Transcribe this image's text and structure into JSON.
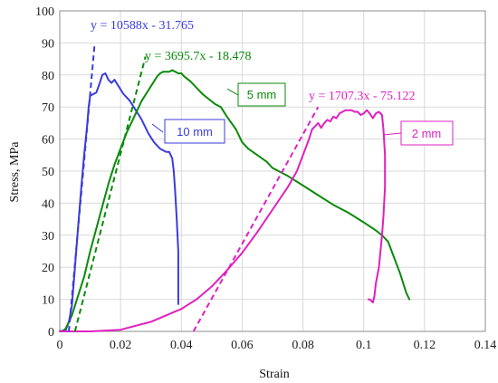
{
  "chart_data": {
    "type": "line",
    "xlabel": "Strain",
    "ylabel": "Stress, MPa",
    "xlim": [
      0,
      0.14
    ],
    "ylim": [
      0,
      100
    ],
    "x_ticks": [
      "0",
      "0.02",
      "0.04",
      "0.06",
      "0.08",
      "0.1",
      "0.12",
      "0.14"
    ],
    "y_ticks": [
      "0",
      "10",
      "20",
      "30",
      "40",
      "50",
      "60",
      "70",
      "80",
      "90",
      "100"
    ],
    "grid": true,
    "series": [
      {
        "name": "10 mm",
        "color": "#3b3bdd",
        "points": [
          [
            0.0,
            0
          ],
          [
            0.002,
            0.5
          ],
          [
            0.003,
            3
          ],
          [
            0.004,
            8
          ],
          [
            0.005,
            20
          ],
          [
            0.006,
            32
          ],
          [
            0.007,
            44
          ],
          [
            0.008,
            55
          ],
          [
            0.009,
            64
          ],
          [
            0.0095,
            70
          ],
          [
            0.01,
            73.5
          ],
          [
            0.011,
            74
          ],
          [
            0.012,
            74.5
          ],
          [
            0.013,
            77
          ],
          [
            0.014,
            80
          ],
          [
            0.015,
            80.5
          ],
          [
            0.016,
            78.5
          ],
          [
            0.017,
            77.5
          ],
          [
            0.018,
            78.5
          ],
          [
            0.019,
            77
          ],
          [
            0.02,
            75.5
          ],
          [
            0.021,
            74
          ],
          [
            0.022,
            73
          ],
          [
            0.023,
            72
          ],
          [
            0.024,
            70.5
          ],
          [
            0.025,
            69
          ],
          [
            0.026,
            67.5
          ],
          [
            0.027,
            66
          ],
          [
            0.028,
            64
          ],
          [
            0.029,
            62
          ],
          [
            0.03,
            60.5
          ],
          [
            0.031,
            59
          ],
          [
            0.032,
            58
          ],
          [
            0.033,
            57
          ],
          [
            0.034,
            56.5
          ],
          [
            0.035,
            56
          ],
          [
            0.036,
            56
          ],
          [
            0.037,
            54
          ],
          [
            0.0375,
            50
          ],
          [
            0.038,
            43
          ],
          [
            0.0385,
            35
          ],
          [
            0.039,
            25
          ],
          [
            0.039,
            15
          ],
          [
            0.039,
            8.5
          ]
        ]
      },
      {
        "name": "5 mm",
        "color": "#0a8a0a",
        "points": [
          [
            0.0,
            0
          ],
          [
            0.001,
            0
          ],
          [
            0.002,
            1
          ],
          [
            0.004,
            5
          ],
          [
            0.006,
            11
          ],
          [
            0.008,
            17
          ],
          [
            0.01,
            25
          ],
          [
            0.012,
            32
          ],
          [
            0.014,
            39
          ],
          [
            0.016,
            46
          ],
          [
            0.018,
            52
          ],
          [
            0.02,
            57
          ],
          [
            0.022,
            62
          ],
          [
            0.024,
            66
          ],
          [
            0.025,
            68
          ],
          [
            0.026,
            70
          ],
          [
            0.027,
            72
          ],
          [
            0.028,
            73.5
          ],
          [
            0.029,
            75
          ],
          [
            0.03,
            76.5
          ],
          [
            0.031,
            78
          ],
          [
            0.032,
            79.5
          ],
          [
            0.033,
            80.5
          ],
          [
            0.034,
            81
          ],
          [
            0.036,
            81
          ],
          [
            0.037,
            81.5
          ],
          [
            0.038,
            81
          ],
          [
            0.039,
            80.5
          ],
          [
            0.04,
            80.5
          ],
          [
            0.041,
            79.5
          ],
          [
            0.043,
            78
          ],
          [
            0.045,
            76
          ],
          [
            0.047,
            74
          ],
          [
            0.049,
            72.5
          ],
          [
            0.051,
            71
          ],
          [
            0.053,
            70
          ],
          [
            0.055,
            67
          ],
          [
            0.058,
            63
          ],
          [
            0.06,
            59
          ],
          [
            0.062,
            57
          ],
          [
            0.065,
            55
          ],
          [
            0.068,
            53
          ],
          [
            0.07,
            51
          ],
          [
            0.075,
            48.5
          ],
          [
            0.08,
            45.5
          ],
          [
            0.085,
            42.5
          ],
          [
            0.09,
            39.5
          ],
          [
            0.095,
            37
          ],
          [
            0.1,
            34
          ],
          [
            0.104,
            31.5
          ],
          [
            0.106,
            30
          ],
          [
            0.108,
            28
          ],
          [
            0.11,
            23
          ],
          [
            0.112,
            18
          ],
          [
            0.114,
            12
          ],
          [
            0.115,
            10
          ]
        ]
      },
      {
        "name": "2 mm",
        "color": "#e020c0",
        "points": [
          [
            0.0,
            0
          ],
          [
            0.01,
            0
          ],
          [
            0.02,
            0.5
          ],
          [
            0.03,
            3
          ],
          [
            0.04,
            7
          ],
          [
            0.045,
            10
          ],
          [
            0.05,
            14
          ],
          [
            0.055,
            19
          ],
          [
            0.06,
            24.5
          ],
          [
            0.065,
            31
          ],
          [
            0.07,
            38
          ],
          [
            0.075,
            45
          ],
          [
            0.078,
            50
          ],
          [
            0.08,
            55
          ],
          [
            0.082,
            60
          ],
          [
            0.083,
            63
          ],
          [
            0.085,
            65
          ],
          [
            0.086,
            63.5
          ],
          [
            0.087,
            65
          ],
          [
            0.088,
            66
          ],
          [
            0.089,
            65.5
          ],
          [
            0.09,
            67
          ],
          [
            0.091,
            66.5
          ],
          [
            0.092,
            68
          ],
          [
            0.093,
            68.5
          ],
          [
            0.094,
            69
          ],
          [
            0.095,
            69
          ],
          [
            0.096,
            69
          ],
          [
            0.097,
            68.5
          ],
          [
            0.098,
            68.5
          ],
          [
            0.099,
            67.5
          ],
          [
            0.1,
            68
          ],
          [
            0.101,
            69
          ],
          [
            0.102,
            68
          ],
          [
            0.103,
            66.5
          ],
          [
            0.104,
            68
          ],
          [
            0.105,
            68.5
          ],
          [
            0.106,
            67.5
          ],
          [
            0.1065,
            63
          ],
          [
            0.107,
            55
          ],
          [
            0.107,
            45
          ],
          [
            0.1065,
            36
          ],
          [
            0.106,
            30
          ],
          [
            0.1055,
            25
          ],
          [
            0.105,
            20
          ],
          [
            0.104,
            15
          ],
          [
            0.1035,
            11
          ],
          [
            0.103,
            9
          ],
          [
            0.102,
            10
          ],
          [
            0.1015,
            10
          ]
        ]
      }
    ],
    "fit_lines": [
      {
        "label": "y = 10588x - 31.765",
        "color": "#3b3bdd",
        "slope": 10588,
        "intercept": -31.765,
        "x_range": [
          0.003,
          0.0115
        ]
      },
      {
        "label": "y = 3695.7x - 18.478",
        "color": "#0a8a0a",
        "slope": 3695.7,
        "intercept": -18.478,
        "x_range": [
          0.005,
          0.0282
        ]
      },
      {
        "label": "y = 1707.3x - 75.122",
        "color": "#e020c0",
        "slope": 1707.3,
        "intercept": -75.122,
        "x_range": [
          0.044,
          0.085
        ]
      }
    ],
    "annotations": [
      {
        "text": "10 mm",
        "color": "#3b3bdd"
      },
      {
        "text": "5 mm",
        "color": "#0a8a0a"
      },
      {
        "text": "2 mm",
        "color": "#e020c0"
      }
    ]
  }
}
